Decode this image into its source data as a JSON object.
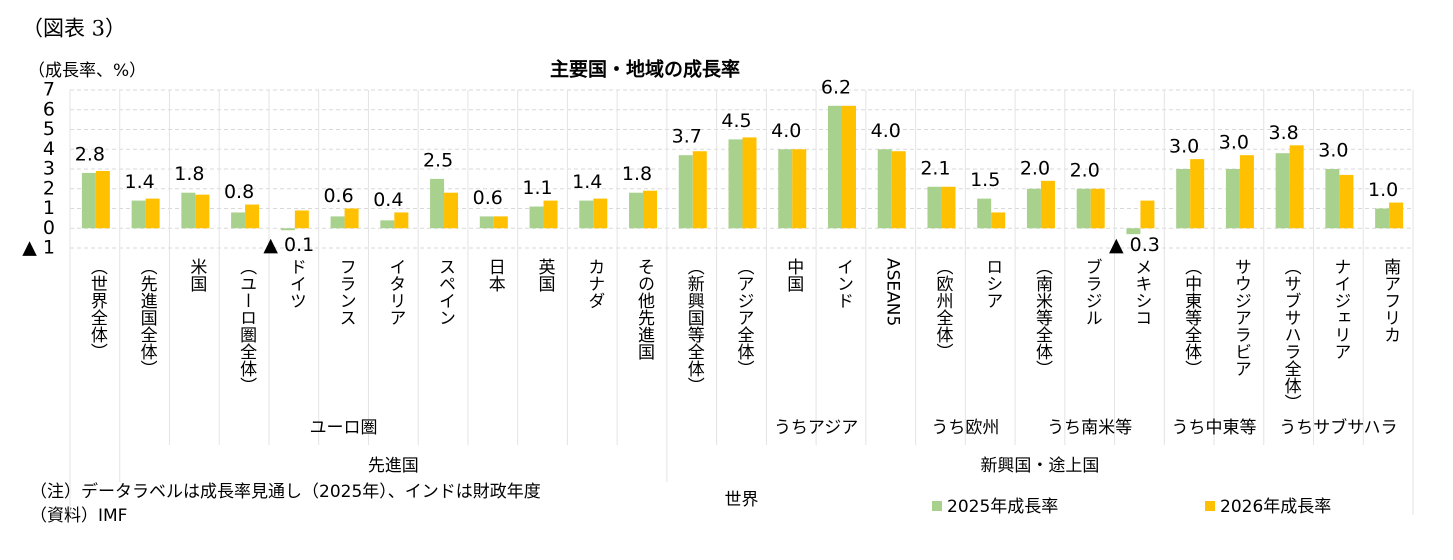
{
  "figure_label": "（図表 3）",
  "notes": [
    "（注）データラベルは成長率見通し（2025年）、インドは財政年度",
    "（資料）IMF"
  ],
  "chart_data": {
    "type": "bar",
    "title": "主要国・地域の成長率",
    "y_label": "（成長率、%）",
    "categories": [
      "（世界全体）",
      "（先進国全体）",
      "米国",
      "（ユーロ圏全体）",
      "ドイツ",
      "フランス",
      "イタリア",
      "スペイン",
      "日本",
      "英国",
      "カナダ",
      "その他先進国",
      "（新興国等全体）",
      "（アジア全体）",
      "中国",
      "インド",
      "ASEAN5",
      "（欧州全体）",
      "ロシア",
      "（南米等全体）",
      "ブラジル",
      "メキシコ",
      "（中東等全体）",
      "サウジアラビア",
      "（サブサハラ全体）",
      "ナイジェリア",
      "南アフリカ"
    ],
    "series": [
      {
        "name": "2025年成長率",
        "color": "#a9d18e",
        "values": [
          2.8,
          1.4,
          1.8,
          0.8,
          -0.1,
          0.6,
          0.4,
          2.5,
          0.6,
          1.1,
          1.4,
          1.8,
          3.7,
          4.5,
          4.0,
          6.2,
          4.0,
          2.1,
          1.5,
          2.0,
          2.0,
          -0.3,
          3.0,
          3.0,
          3.8,
          3.0,
          1.0
        ],
        "value_labels": [
          "2.8",
          "1.4",
          "1.8",
          "0.8",
          "▲ 0.1",
          "0.6",
          "0.4",
          "2.5",
          "0.6",
          "1.1",
          "1.4",
          "1.8",
          "3.7",
          "4.5",
          "4.0",
          "6.2",
          "4.0",
          "2.1",
          "1.5",
          "2.0",
          "2.0",
          "▲ 0.3",
          "3.0",
          "3.0",
          "3.8",
          "3.0",
          "1.0"
        ]
      },
      {
        "name": "2026年成長率",
        "color": "#ffc000",
        "values": [
          2.9,
          1.5,
          1.7,
          1.2,
          0.9,
          1.0,
          0.8,
          1.8,
          0.6,
          1.4,
          1.5,
          1.9,
          3.9,
          4.6,
          4.0,
          6.2,
          3.9,
          2.1,
          0.8,
          2.4,
          2.0,
          1.4,
          3.5,
          3.7,
          4.2,
          2.7,
          1.3
        ]
      }
    ],
    "groups": [
      [
        {
          "label": "ユーロ圏",
          "span": [
            3,
            7
          ]
        },
        {
          "label": "うちアジア",
          "span": [
            13,
            16
          ]
        },
        {
          "label": "うち欧州",
          "span": [
            17,
            18
          ]
        },
        {
          "label": "うち南米等",
          "span": [
            19,
            21
          ]
        },
        {
          "label": "うち中東等",
          "span": [
            22,
            23
          ]
        },
        {
          "label": "うちサブサハラ",
          "span": [
            24,
            26
          ]
        }
      ],
      [
        {
          "label": "先進国",
          "span": [
            1,
            11
          ]
        },
        {
          "label": "新興国・途上国",
          "span": [
            12,
            26
          ]
        }
      ],
      [
        {
          "label": "世界",
          "span": [
            0,
            26
          ]
        }
      ]
    ],
    "ylim": [
      -1,
      7
    ],
    "yticks": [
      {
        "value": -1,
        "label": "▲ 1"
      },
      0,
      1,
      2,
      3,
      4,
      5,
      6,
      7
    ],
    "grid": true,
    "legend": "bottom-right"
  }
}
